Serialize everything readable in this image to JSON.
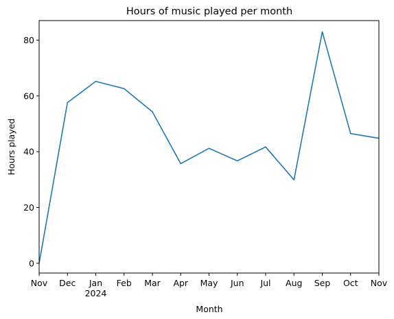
{
  "chart_data": {
    "type": "line",
    "title": "Hours of music played per month",
    "xlabel": "Month",
    "ylabel": "Hours played",
    "x": [
      "2023-11",
      "2023-12",
      "2024-01",
      "2024-02",
      "2024-03",
      "2024-04",
      "2024-05",
      "2024-06",
      "2024-07",
      "2024-08",
      "2024-09",
      "2024-10",
      "2024-11"
    ],
    "x_tick_labels": [
      "Nov",
      "Dec",
      "Jan\n2024",
      "Feb",
      "Mar",
      "Apr",
      "May",
      "Jun",
      "Jul",
      "Aug",
      "Sep",
      "Oct",
      "Nov"
    ],
    "series": [
      {
        "values": [
          0.0,
          57.6,
          65.2,
          62.6,
          54.3,
          35.7,
          41.2,
          36.7,
          41.7,
          29.9,
          83.0,
          46.5,
          44.8
        ],
        "color": "#1f77b4"
      }
    ],
    "yticks": [
      0,
      20,
      40,
      60,
      80
    ],
    "ylim": [
      -3.5,
      87
    ],
    "xlim": [
      "2023-11",
      "2024-11"
    ],
    "grid": false,
    "legend": null
  }
}
